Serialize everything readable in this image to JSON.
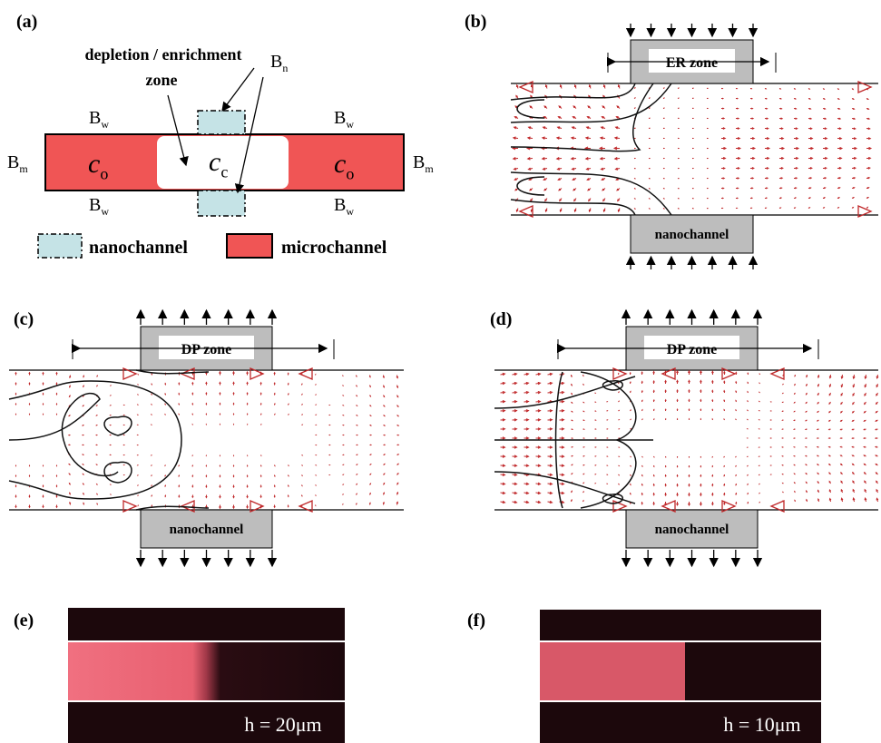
{
  "panels": [
    {
      "label": "(a)",
      "zone_label": [
        "depletion / enrichment",
        "zone"
      ],
      "symbols": {
        "Bw": {
          "base": "B",
          "sub": "w"
        },
        "Bn": {
          "base": "B",
          "sub": "n"
        },
        "Bm": {
          "base": "B",
          "sub": "m"
        },
        "co": {
          "base": "c",
          "sub": "o"
        },
        "cc": {
          "base": "c",
          "sub": "c"
        }
      },
      "legend": [
        "nanochannel",
        "microchannel"
      ]
    },
    {
      "label": "(b)",
      "zone": "ER zone",
      "nanochannel": "nanochannel"
    },
    {
      "label": "(c)",
      "zone": "DP zone",
      "nanochannel": "nanochannel"
    },
    {
      "label": "(d)",
      "zone": "DP zone",
      "nanochannel": "nanochannel"
    },
    {
      "label": "(e)",
      "caption": "h = 20μm"
    },
    {
      "label": "(f)",
      "caption": "h = 10μm"
    }
  ]
}
